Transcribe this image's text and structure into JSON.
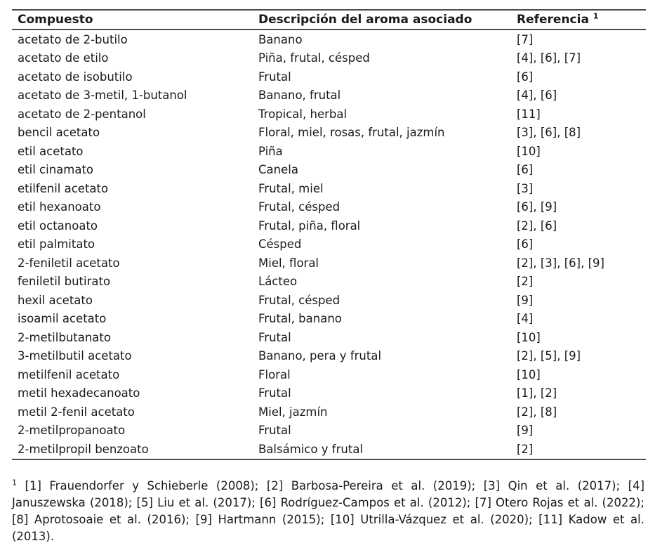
{
  "table": {
    "headers": [
      "Compuesto",
      "Descripción del aroma asociado",
      "Referencia"
    ],
    "header_note_marker": "1",
    "rows": [
      {
        "compound": "acetato de 2-butilo",
        "aroma": "Banano",
        "reference": "[7]"
      },
      {
        "compound": "acetato de etilo",
        "aroma": "Piña, frutal, césped",
        "reference": "[4], [6], [7]"
      },
      {
        "compound": "acetato de isobutilo",
        "aroma": "Frutal",
        "reference": "[6]"
      },
      {
        "compound": "acetato de 3-metil, 1-butanol",
        "aroma": "Banano, frutal",
        "reference": "[4], [6]"
      },
      {
        "compound": "acetato de 2-pentanol",
        "aroma": "Tropical, herbal",
        "reference": "[11]"
      },
      {
        "compound": "bencil acetato",
        "aroma": "Floral, miel, rosas, frutal, jazmín",
        "reference": "[3], [6], [8]"
      },
      {
        "compound": "etil acetato",
        "aroma": "Piña",
        "reference": "[10]"
      },
      {
        "compound": "etil cinamato",
        "aroma": "Canela",
        "reference": "[6]"
      },
      {
        "compound": "etilfenil acetato",
        "aroma": "Frutal, miel",
        "reference": "[3]"
      },
      {
        "compound": "etil hexanoato",
        "aroma": "Frutal, césped",
        "reference": "[6], [9]"
      },
      {
        "compound": "etil octanoato",
        "aroma": "Frutal, piña, floral",
        "reference": "[2], [6]"
      },
      {
        "compound": "etil palmitato",
        "aroma": "Césped",
        "reference": "[6]"
      },
      {
        "compound": "2-feniletil acetato",
        "aroma": "Miel, floral",
        "reference": "[2], [3], [6], [9]"
      },
      {
        "compound": "feniletil butirato",
        "aroma": "Lácteo",
        "reference": "[2]"
      },
      {
        "compound": "hexil acetato",
        "aroma": "Frutal, césped",
        "reference": "[9]"
      },
      {
        "compound": "isoamil acetato",
        "aroma": "Frutal, banano",
        "reference": "[4]"
      },
      {
        "compound": "2-metilbutanato",
        "aroma": "Frutal",
        "reference": "[10]"
      },
      {
        "compound": "3-metilbutil acetato",
        "aroma": "Banano, pera y frutal",
        "reference": "[2], [5], [9]"
      },
      {
        "compound": "metilfenil acetato",
        "aroma": "Floral",
        "reference": "[10]"
      },
      {
        "compound": "metil hexadecanoato",
        "aroma": "Frutal",
        "reference": "[1], [2]"
      },
      {
        "compound": "metil 2-fenil acetato",
        "aroma": "Miel, jazmín",
        "reference": "[2], [8]"
      },
      {
        "compound": "2-metilpropanoato",
        "aroma": "Frutal",
        "reference": "[9]"
      },
      {
        "compound": "2-metilpropil benzoato",
        "aroma": "Balsámico y frutal",
        "reference": "[2]"
      }
    ]
  },
  "footnote": {
    "marker": "1",
    "text": "[1] Frauendorfer y Schieberle (2008); [2] Barbosa-Pereira et al. (2019); [3] Qin et al. (2017); [4] Januszewska (2018); [5] Liu et al. (2017); [6] Rodríguez-Campos et al. (2012); [7] Otero Rojas et al. (2022); [8] Aprotosoaie et al. (2016); [9] Hartmann (2015); [10] Utrilla-Vázquez et al. (2020); [11] Kadow et al. (2013)."
  },
  "colors": {
    "text": "#1a1a1a",
    "rule": "#4d4d4d",
    "background": "#ffffff"
  }
}
